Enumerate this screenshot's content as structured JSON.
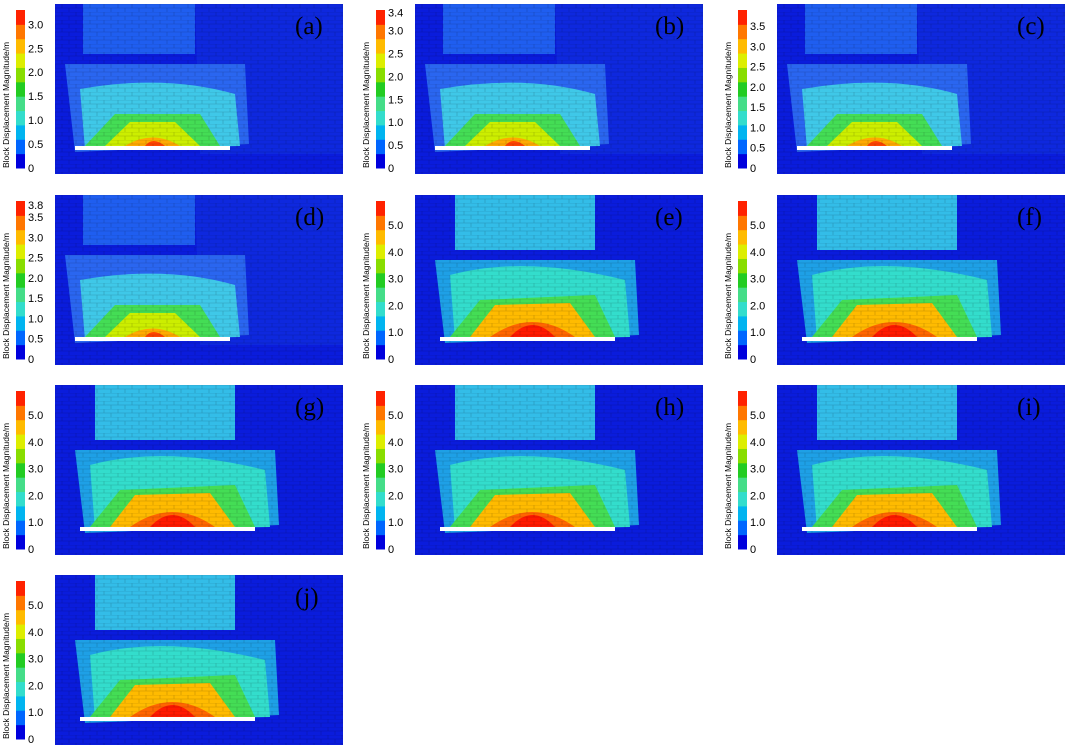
{
  "figure": {
    "colorbar_title": "Block Displacement Magnitude/m",
    "colormap": [
      "#0000dd",
      "#0066ff",
      "#00b4f0",
      "#33ddcc",
      "#44dd88",
      "#22cc22",
      "#88dd00",
      "#ddee00",
      "#ffbb00",
      "#ff7700",
      "#ff2200"
    ],
    "background_color": "#0a1cdc",
    "panels": [
      {
        "label": "(a)",
        "ticks": [
          "3.0",
          "2.5",
          "2.0",
          "1.5",
          "1.0",
          "0.5",
          "0"
        ],
        "vmax": 3.3,
        "stage": 1
      },
      {
        "label": "(b)",
        "ticks": [
          "3.4",
          "3.0",
          "2.5",
          "2.0",
          "1.5",
          "1.0",
          "0.5",
          "0"
        ],
        "vmax": 3.45,
        "stage": 2
      },
      {
        "label": "(c)",
        "ticks": [
          "3.5",
          "3.0",
          "2.5",
          "2.0",
          "1.5",
          "1.0",
          "0.5",
          "0"
        ],
        "vmax": 3.9,
        "stage": 3
      },
      {
        "label": "(d)",
        "ticks": [
          "3.8",
          "3.5",
          "3.0",
          "2.5",
          "2.0",
          "1.5",
          "1.0",
          "0.5",
          "0"
        ],
        "vmax": 3.9,
        "stage": 4
      },
      {
        "label": "(e)",
        "ticks": [
          "5.0",
          "4.0",
          "3.0",
          "2.0",
          "1.0",
          "0"
        ],
        "vmax": 5.9,
        "stage": 5
      },
      {
        "label": "(f)",
        "ticks": [
          "5.0",
          "4.0",
          "3.0",
          "2.0",
          "1.0",
          "0"
        ],
        "vmax": 5.9,
        "stage": 5
      },
      {
        "label": "(g)",
        "ticks": [
          "5.0",
          "4.0",
          "3.0",
          "2.0",
          "1.0",
          "0"
        ],
        "vmax": 5.9,
        "stage": 6
      },
      {
        "label": "(h)",
        "ticks": [
          "5.0",
          "4.0",
          "3.0",
          "2.0",
          "1.0",
          "0"
        ],
        "vmax": 5.9,
        "stage": 6
      },
      {
        "label": "(i)",
        "ticks": [
          "5.0",
          "4.0",
          "3.0",
          "2.0",
          "1.0",
          "0"
        ],
        "vmax": 5.9,
        "stage": 6
      },
      {
        "label": "(j)",
        "ticks": [
          "5.0",
          "4.0",
          "3.0",
          "2.0",
          "1.0",
          "0"
        ],
        "vmax": 5.9,
        "stage": 7
      }
    ]
  }
}
